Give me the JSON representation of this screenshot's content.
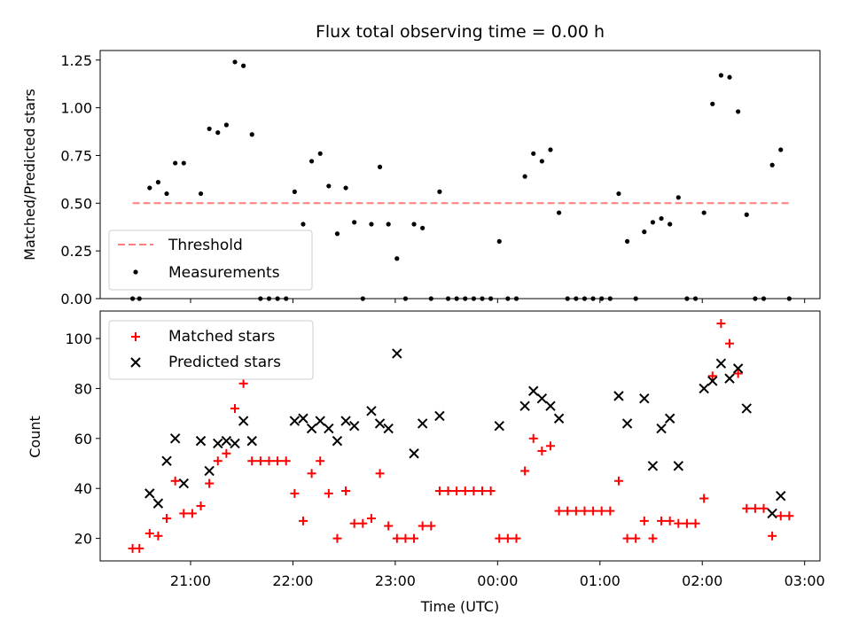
{
  "colors": {
    "threshold": "#ff7f7f",
    "measurement": "#000000",
    "matched": "#ff0000",
    "predicted": "#000000",
    "axes": "#000000",
    "legend_border": "#cccccc"
  },
  "chart_data": [
    {
      "type": "scatter",
      "title": "Flux total observing time = 0.00 h",
      "xlabel": "",
      "ylabel": "Matched/Predicted stars",
      "xlim": [
        "20:07",
        "03:09"
      ],
      "ylim": [
        0,
        1.3
      ],
      "yticks": [
        0.0,
        0.25,
        0.5,
        0.75,
        1.0,
        1.25
      ],
      "ytick_labels": [
        "0.00",
        "0.25",
        "0.50",
        "0.75",
        "1.00",
        "1.25"
      ],
      "legend_position": "lower-left",
      "threshold": {
        "name": "Threshold",
        "value": 0.5,
        "x_range": [
          "20:26",
          "02:52"
        ],
        "style": "dashed"
      },
      "series": [
        {
          "name": "Measurements",
          "marker": "dot",
          "points": [
            [
              "20:26",
              0.0
            ],
            [
              "20:30",
              0.0
            ],
            [
              "20:36",
              0.58
            ],
            [
              "20:41",
              0.61
            ],
            [
              "20:46",
              0.55
            ],
            [
              "20:51",
              0.71
            ],
            [
              "20:56",
              0.71
            ],
            [
              "21:06",
              0.55
            ],
            [
              "21:11",
              0.89
            ],
            [
              "21:16",
              0.87
            ],
            [
              "21:21",
              0.91
            ],
            [
              "21:26",
              1.24
            ],
            [
              "21:31",
              1.22
            ],
            [
              "21:36",
              0.86
            ],
            [
              "21:41",
              0.0
            ],
            [
              "21:46",
              0.0
            ],
            [
              "21:51",
              0.0
            ],
            [
              "21:56",
              0.0
            ],
            [
              "22:01",
              0.56
            ],
            [
              "22:06",
              0.39
            ],
            [
              "22:11",
              0.72
            ],
            [
              "22:16",
              0.76
            ],
            [
              "22:21",
              0.59
            ],
            [
              "22:26",
              0.34
            ],
            [
              "22:31",
              0.58
            ],
            [
              "22:36",
              0.4
            ],
            [
              "22:41",
              0.0
            ],
            [
              "22:46",
              0.39
            ],
            [
              "22:51",
              0.69
            ],
            [
              "22:56",
              0.39
            ],
            [
              "23:01",
              0.21
            ],
            [
              "23:06",
              0.0
            ],
            [
              "23:11",
              0.39
            ],
            [
              "23:16",
              0.37
            ],
            [
              "23:21",
              0.0
            ],
            [
              "23:26",
              0.56
            ],
            [
              "23:31",
              0.0
            ],
            [
              "23:36",
              0.0
            ],
            [
              "23:41",
              0.0
            ],
            [
              "23:46",
              0.0
            ],
            [
              "23:51",
              0.0
            ],
            [
              "23:56",
              0.0
            ],
            [
              "00:01",
              0.3
            ],
            [
              "00:06",
              0.0
            ],
            [
              "00:11",
              0.0
            ],
            [
              "00:16",
              0.64
            ],
            [
              "00:21",
              0.76
            ],
            [
              "00:26",
              0.72
            ],
            [
              "00:31",
              0.78
            ],
            [
              "00:36",
              0.45
            ],
            [
              "00:41",
              0.0
            ],
            [
              "00:46",
              0.0
            ],
            [
              "00:51",
              0.0
            ],
            [
              "00:56",
              0.0
            ],
            [
              "01:01",
              0.0
            ],
            [
              "01:06",
              0.0
            ],
            [
              "01:11",
              0.55
            ],
            [
              "01:16",
              0.3
            ],
            [
              "01:21",
              0.0
            ],
            [
              "01:26",
              0.35
            ],
            [
              "01:31",
              0.4
            ],
            [
              "01:36",
              0.42
            ],
            [
              "01:41",
              0.39
            ],
            [
              "01:46",
              0.53
            ],
            [
              "01:51",
              0.0
            ],
            [
              "01:56",
              0.0
            ],
            [
              "02:01",
              0.45
            ],
            [
              "02:06",
              1.02
            ],
            [
              "02:11",
              1.17
            ],
            [
              "02:16",
              1.16
            ],
            [
              "02:21",
              0.98
            ],
            [
              "02:26",
              0.44
            ],
            [
              "02:31",
              0.0
            ],
            [
              "02:36",
              0.0
            ],
            [
              "02:41",
              0.7
            ],
            [
              "02:46",
              0.78
            ],
            [
              "02:51",
              0.0
            ]
          ]
        }
      ]
    },
    {
      "type": "scatter",
      "title": "",
      "xlabel": "Time (UTC)",
      "ylabel": "Count",
      "xlim": [
        "20:07",
        "03:09"
      ],
      "ylim": [
        11,
        111
      ],
      "yticks": [
        20,
        40,
        60,
        80,
        100
      ],
      "xticks": [
        "21:00",
        "22:00",
        "23:00",
        "00:00",
        "01:00",
        "02:00",
        "03:00"
      ],
      "legend_position": "upper-left",
      "series": [
        {
          "name": "Matched stars",
          "marker": "plus",
          "points": [
            [
              "20:26",
              16
            ],
            [
              "20:30",
              16
            ],
            [
              "20:36",
              22
            ],
            [
              "20:41",
              21
            ],
            [
              "20:46",
              28
            ],
            [
              "20:51",
              43
            ],
            [
              "20:56",
              30
            ],
            [
              "21:01",
              30
            ],
            [
              "21:06",
              33
            ],
            [
              "21:11",
              42
            ],
            [
              "21:16",
              51
            ],
            [
              "21:21",
              54
            ],
            [
              "21:26",
              72
            ],
            [
              "21:31",
              82
            ],
            [
              "21:36",
              51
            ],
            [
              "21:41",
              51
            ],
            [
              "21:46",
              51
            ],
            [
              "21:51",
              51
            ],
            [
              "21:56",
              51
            ],
            [
              "22:01",
              38
            ],
            [
              "22:06",
              27
            ],
            [
              "22:11",
              46
            ],
            [
              "22:16",
              51
            ],
            [
              "22:21",
              38
            ],
            [
              "22:26",
              20
            ],
            [
              "22:31",
              39
            ],
            [
              "22:36",
              26
            ],
            [
              "22:41",
              26
            ],
            [
              "22:46",
              28
            ],
            [
              "22:51",
              46
            ],
            [
              "22:56",
              25
            ],
            [
              "23:01",
              20
            ],
            [
              "23:06",
              20
            ],
            [
              "23:11",
              20
            ],
            [
              "23:16",
              25
            ],
            [
              "23:21",
              25
            ],
            [
              "23:26",
              39
            ],
            [
              "23:31",
              39
            ],
            [
              "23:36",
              39
            ],
            [
              "23:41",
              39
            ],
            [
              "23:46",
              39
            ],
            [
              "23:51",
              39
            ],
            [
              "23:56",
              39
            ],
            [
              "00:01",
              20
            ],
            [
              "00:06",
              20
            ],
            [
              "00:11",
              20
            ],
            [
              "00:16",
              47
            ],
            [
              "00:21",
              60
            ],
            [
              "00:26",
              55
            ],
            [
              "00:31",
              57
            ],
            [
              "00:36",
              31
            ],
            [
              "00:41",
              31
            ],
            [
              "00:46",
              31
            ],
            [
              "00:51",
              31
            ],
            [
              "00:56",
              31
            ],
            [
              "01:01",
              31
            ],
            [
              "01:06",
              31
            ],
            [
              "01:11",
              43
            ],
            [
              "01:16",
              20
            ],
            [
              "01:21",
              20
            ],
            [
              "01:26",
              27
            ],
            [
              "01:31",
              20
            ],
            [
              "01:36",
              27
            ],
            [
              "01:41",
              27
            ],
            [
              "01:46",
              26
            ],
            [
              "01:51",
              26
            ],
            [
              "01:56",
              26
            ],
            [
              "02:01",
              36
            ],
            [
              "02:06",
              85
            ],
            [
              "02:11",
              106
            ],
            [
              "02:16",
              98
            ],
            [
              "02:21",
              86
            ],
            [
              "02:26",
              32
            ],
            [
              "02:31",
              32
            ],
            [
              "02:36",
              32
            ],
            [
              "02:41",
              21
            ],
            [
              "02:46",
              29
            ],
            [
              "02:51",
              29
            ]
          ]
        },
        {
          "name": "Predicted stars",
          "marker": "x",
          "points": [
            [
              "20:36",
              38
            ],
            [
              "20:41",
              34
            ],
            [
              "20:46",
              51
            ],
            [
              "20:51",
              60
            ],
            [
              "20:56",
              42
            ],
            [
              "21:06",
              59
            ],
            [
              "21:11",
              47
            ],
            [
              "21:16",
              58
            ],
            [
              "21:21",
              59
            ],
            [
              "21:26",
              58
            ],
            [
              "21:31",
              67
            ],
            [
              "21:36",
              59
            ],
            [
              "22:01",
              67
            ],
            [
              "22:06",
              68
            ],
            [
              "22:11",
              64
            ],
            [
              "22:16",
              67
            ],
            [
              "22:21",
              64
            ],
            [
              "22:26",
              59
            ],
            [
              "22:31",
              67
            ],
            [
              "22:36",
              65
            ],
            [
              "22:46",
              71
            ],
            [
              "22:51",
              66
            ],
            [
              "22:56",
              64
            ],
            [
              "23:01",
              94
            ],
            [
              "23:11",
              54
            ],
            [
              "23:16",
              66
            ],
            [
              "23:26",
              69
            ],
            [
              "00:01",
              65
            ],
            [
              "00:16",
              73
            ],
            [
              "00:21",
              79
            ],
            [
              "00:26",
              76
            ],
            [
              "00:31",
              73
            ],
            [
              "00:36",
              68
            ],
            [
              "01:11",
              77
            ],
            [
              "01:16",
              66
            ],
            [
              "01:26",
              76
            ],
            [
              "01:31",
              49
            ],
            [
              "01:36",
              64
            ],
            [
              "01:41",
              68
            ],
            [
              "01:46",
              49
            ],
            [
              "02:01",
              80
            ],
            [
              "02:06",
              83
            ],
            [
              "02:11",
              90
            ],
            [
              "02:16",
              84
            ],
            [
              "02:21",
              88
            ],
            [
              "02:26",
              72
            ],
            [
              "02:41",
              30
            ],
            [
              "02:46",
              37
            ]
          ]
        }
      ]
    }
  ]
}
